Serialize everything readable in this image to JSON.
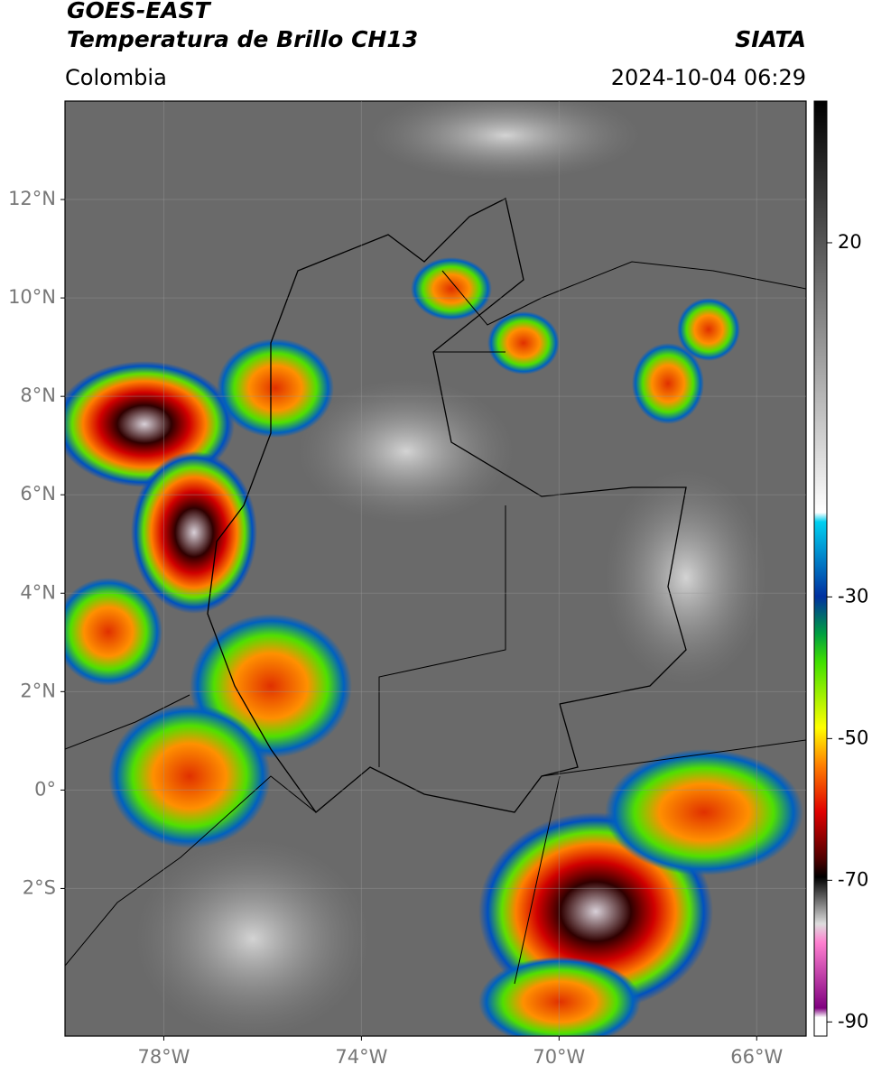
{
  "header": {
    "title": "GOES-EAST",
    "subtitle": "Temperatura de Brillo CH13",
    "region": "Colombia",
    "source": "SIATA",
    "timestamp": "2024-10-04 06:29"
  },
  "map": {
    "xlim": [
      -80,
      -65
    ],
    "ylim": [
      -5,
      14
    ],
    "xticks": [
      {
        "value": -78,
        "label": "78°W"
      },
      {
        "value": -74,
        "label": "74°W"
      },
      {
        "value": -70,
        "label": "70°W"
      },
      {
        "value": -66,
        "label": "66°W"
      }
    ],
    "yticks": [
      {
        "value": 12,
        "label": "12°N"
      },
      {
        "value": 10,
        "label": "10°N"
      },
      {
        "value": 8,
        "label": "8°N"
      },
      {
        "value": 6,
        "label": "6°N"
      },
      {
        "value": 4,
        "label": "4°N"
      },
      {
        "value": 2,
        "label": "2°N"
      },
      {
        "value": 0,
        "label": "0°"
      },
      {
        "value": -2,
        "label": "2°S"
      }
    ]
  },
  "colorbar": {
    "ylim": [
      -92,
      40
    ],
    "yticks": [
      20,
      -30,
      -50,
      -70,
      -90
    ]
  }
}
